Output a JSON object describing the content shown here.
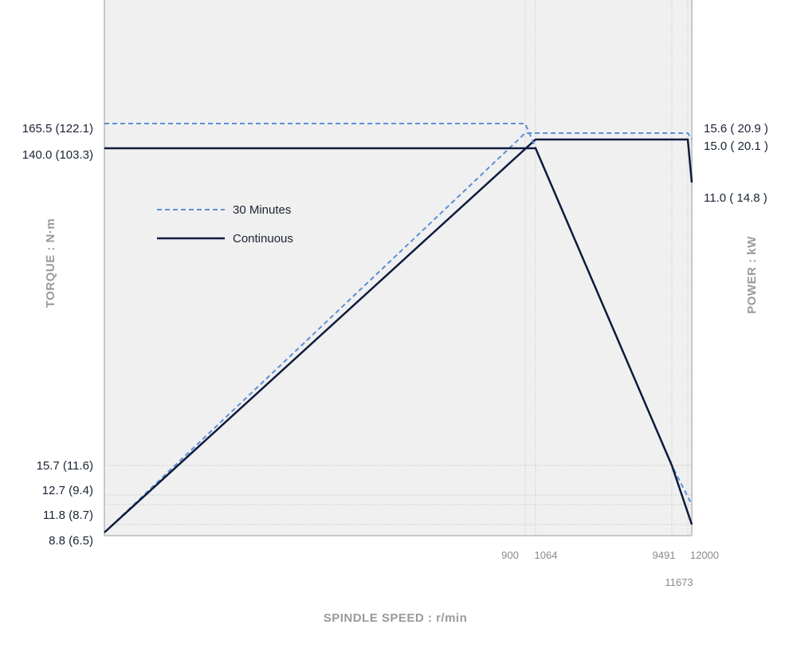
{
  "chart_data": {
    "type": "line",
    "xlabel": "SPINDLE SPEED : r/min",
    "ylabel_left": "TORQUE : N·m",
    "ylabel_right": "POWER : kW",
    "x_ticks": [
      "900",
      "1064",
      "9491",
      "12000",
      "11673"
    ],
    "x_tick_values": [
      900,
      1064,
      9491,
      12000,
      11673
    ],
    "torque_ticks": [
      "165.5 (122.1)",
      "140.0 (103.3)",
      "15.7 (11.6)",
      "12.7 (9.4)",
      "11.8 (8.7)",
      "8.8 (6.5)"
    ],
    "power_ticks": [
      "15.6 ( 20.9 )",
      "15.0 ( 20.1 )",
      "11.0 ( 14.8 )"
    ],
    "x_range": [
      0,
      12000
    ],
    "legend": {
      "placement": "upper-left-inside",
      "items": [
        {
          "label": "30 Minutes",
          "style": "dashed",
          "color": "#5b8fd6"
        },
        {
          "label": "Continuous",
          "style": "solid",
          "color": "#0f1b3d"
        }
      ]
    },
    "series": [
      {
        "name": "30 Minutes",
        "kind": "torque",
        "points": [
          [
            0,
            165.5
          ],
          [
            900,
            165.5
          ],
          [
            9491,
            15.7
          ],
          [
            12000,
            12.7
          ]
        ]
      },
      {
        "name": "Continuous",
        "kind": "torque",
        "points": [
          [
            0,
            140.0
          ],
          [
            1064,
            140.0
          ],
          [
            9491,
            15.7
          ],
          [
            12000,
            11.8
          ]
        ]
      },
      {
        "name": "30 Minutes",
        "kind": "power",
        "points": [
          [
            0,
            0
          ],
          [
            900,
            15.6
          ],
          [
            11673,
            15.6
          ],
          [
            12000,
            15.0
          ]
        ]
      },
      {
        "name": "Continuous",
        "kind": "power",
        "points": [
          [
            0,
            0
          ],
          [
            1064,
            15.0
          ],
          [
            11673,
            15.0
          ],
          [
            12000,
            11.0
          ]
        ]
      }
    ],
    "colors": {
      "plot_background": "#f0f0f0",
      "dashed_series": "#5b8fd6",
      "solid_series": "#0f1b3d",
      "grid": "#bdbdbd"
    }
  }
}
